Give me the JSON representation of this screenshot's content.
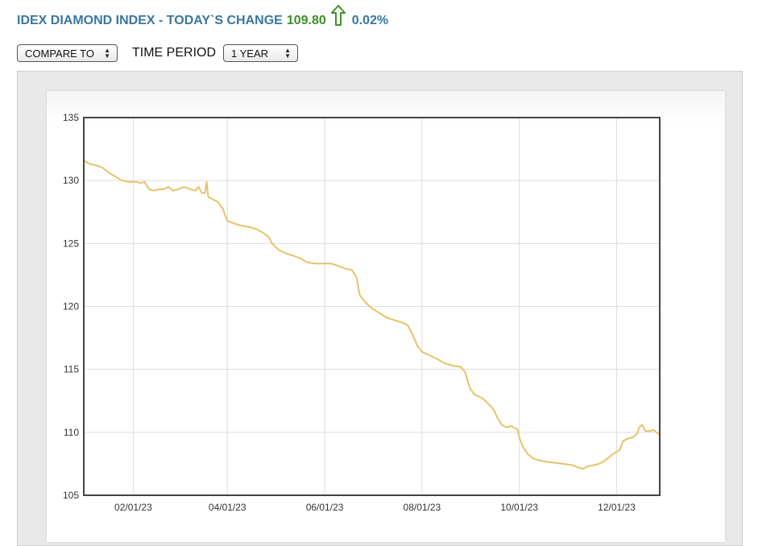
{
  "header": {
    "title": "IDEX DIAMOND INDEX - TODAY`S CHANGE",
    "change_value": "109.80",
    "change_percent": "0.02%",
    "arrow_icon": "up-arrow-icon"
  },
  "controls": {
    "compare_label": "COMPARE TO",
    "time_period_label": "TIME PERIOD",
    "time_period_value": "1 YEAR"
  },
  "colors": {
    "title": "#3a76a0",
    "change_value": "#3f8f2a",
    "line": "#e6c36a"
  },
  "chart_data": {
    "type": "line",
    "title": "",
    "xlabel": "",
    "ylabel": "",
    "ylim": [
      105,
      135
    ],
    "xlim": [
      "2023-01-01",
      "2023-12-28"
    ],
    "y_ticks": [
      105,
      110,
      115,
      120,
      125,
      130,
      135
    ],
    "x_ticks": [
      {
        "label": "02/01/23",
        "date": "2023-02-01"
      },
      {
        "label": "04/01/23",
        "date": "2023-04-01"
      },
      {
        "label": "06/01/23",
        "date": "2023-06-01"
      },
      {
        "label": "08/01/23",
        "date": "2023-08-01"
      },
      {
        "label": "10/01/23",
        "date": "2023-10-01"
      },
      {
        "label": "12/01/23",
        "date": "2023-12-01"
      }
    ],
    "grid": true,
    "series": [
      {
        "color": "#e6c36a",
        "points": [
          [
            "2023-01-01",
            131.6
          ],
          [
            "2023-01-05",
            131.3
          ],
          [
            "2023-01-09",
            131.2
          ],
          [
            "2023-01-13",
            131.0
          ],
          [
            "2023-01-17",
            130.6
          ],
          [
            "2023-01-21",
            130.3
          ],
          [
            "2023-01-25",
            130.0
          ],
          [
            "2023-01-29",
            129.9
          ],
          [
            "2023-02-02",
            129.9
          ],
          [
            "2023-02-06",
            129.8
          ],
          [
            "2023-02-08",
            129.9
          ],
          [
            "2023-02-11",
            129.3
          ],
          [
            "2023-02-14",
            129.2
          ],
          [
            "2023-02-17",
            129.3
          ],
          [
            "2023-02-20",
            129.3
          ],
          [
            "2023-02-23",
            129.5
          ],
          [
            "2023-02-26",
            129.2
          ],
          [
            "2023-03-01",
            129.3
          ],
          [
            "2023-03-05",
            129.5
          ],
          [
            "2023-03-09",
            129.3
          ],
          [
            "2023-03-12",
            129.2
          ],
          [
            "2023-03-14",
            129.5
          ],
          [
            "2023-03-16",
            129.0
          ],
          [
            "2023-03-18",
            129.0
          ],
          [
            "2023-03-19",
            129.9
          ],
          [
            "2023-03-20",
            128.7
          ],
          [
            "2023-03-23",
            128.5
          ],
          [
            "2023-03-26",
            128.3
          ],
          [
            "2023-03-29",
            127.8
          ],
          [
            "2023-04-01",
            126.8
          ],
          [
            "2023-04-05",
            126.6
          ],
          [
            "2023-04-10",
            126.4
          ],
          [
            "2023-04-15",
            126.3
          ],
          [
            "2023-04-20",
            126.1
          ],
          [
            "2023-04-24",
            125.8
          ],
          [
            "2023-04-27",
            125.5
          ],
          [
            "2023-04-29",
            125.0
          ],
          [
            "2023-05-03",
            124.5
          ],
          [
            "2023-05-08",
            124.2
          ],
          [
            "2023-05-13",
            124.0
          ],
          [
            "2023-05-17",
            123.8
          ],
          [
            "2023-05-21",
            123.5
          ],
          [
            "2023-05-26",
            123.4
          ],
          [
            "2023-05-31",
            123.4
          ],
          [
            "2023-06-05",
            123.4
          ],
          [
            "2023-06-10",
            123.2
          ],
          [
            "2023-06-14",
            123.0
          ],
          [
            "2023-06-18",
            122.9
          ],
          [
            "2023-06-21",
            122.3
          ],
          [
            "2023-06-23",
            120.9
          ],
          [
            "2023-06-26",
            120.4
          ],
          [
            "2023-06-30",
            119.9
          ],
          [
            "2023-07-05",
            119.5
          ],
          [
            "2023-07-10",
            119.1
          ],
          [
            "2023-07-15",
            118.9
          ],
          [
            "2023-07-20",
            118.7
          ],
          [
            "2023-07-23",
            118.5
          ],
          [
            "2023-07-26",
            117.8
          ],
          [
            "2023-07-29",
            116.9
          ],
          [
            "2023-08-01",
            116.4
          ],
          [
            "2023-08-06",
            116.1
          ],
          [
            "2023-08-11",
            115.8
          ],
          [
            "2023-08-15",
            115.5
          ],
          [
            "2023-08-20",
            115.3
          ],
          [
            "2023-08-25",
            115.2
          ],
          [
            "2023-08-28",
            114.8
          ],
          [
            "2023-08-31",
            113.5
          ],
          [
            "2023-09-03",
            113.0
          ],
          [
            "2023-09-08",
            112.7
          ],
          [
            "2023-09-12",
            112.2
          ],
          [
            "2023-09-15",
            111.8
          ],
          [
            "2023-09-17",
            111.2
          ],
          [
            "2023-09-20",
            110.6
          ],
          [
            "2023-09-23",
            110.4
          ],
          [
            "2023-09-26",
            110.5
          ],
          [
            "2023-09-30",
            110.2
          ],
          [
            "2023-10-01",
            109.6
          ],
          [
            "2023-10-03",
            108.9
          ],
          [
            "2023-10-06",
            108.3
          ],
          [
            "2023-10-10",
            107.9
          ],
          [
            "2023-10-16",
            107.7
          ],
          [
            "2023-10-22",
            107.6
          ],
          [
            "2023-10-28",
            107.5
          ],
          [
            "2023-11-03",
            107.4
          ],
          [
            "2023-11-07",
            107.2
          ],
          [
            "2023-11-10",
            107.1
          ],
          [
            "2023-11-13",
            107.3
          ],
          [
            "2023-11-17",
            107.4
          ],
          [
            "2023-11-20",
            107.5
          ],
          [
            "2023-11-23",
            107.7
          ],
          [
            "2023-11-26",
            108.0
          ],
          [
            "2023-11-29",
            108.3
          ],
          [
            "2023-12-03",
            108.6
          ],
          [
            "2023-12-05",
            109.3
          ],
          [
            "2023-12-08",
            109.5
          ],
          [
            "2023-12-11",
            109.6
          ],
          [
            "2023-12-14",
            109.9
          ],
          [
            "2023-12-15",
            110.4
          ],
          [
            "2023-12-17",
            110.6
          ],
          [
            "2023-12-19",
            110.1
          ],
          [
            "2023-12-22",
            110.1
          ],
          [
            "2023-12-24",
            110.2
          ],
          [
            "2023-12-26",
            110.0
          ],
          [
            "2023-12-28",
            109.8
          ]
        ]
      }
    ]
  }
}
